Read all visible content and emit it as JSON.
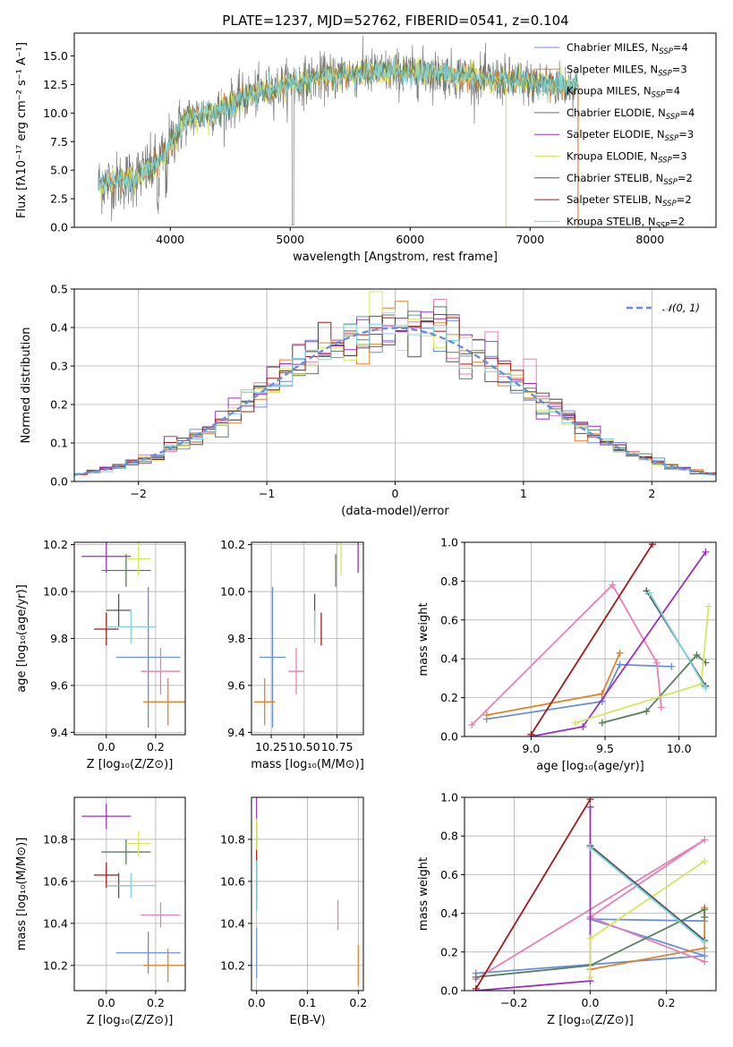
{
  "colors": {
    "chabrier_miles": "#6a8fd8",
    "salpeter_miles": "#e0822a",
    "kroupa_miles": "#e77fb5",
    "chabrier_elodie": "#5a7f5e",
    "salpeter_elodie": "#9b30c0",
    "kroupa_elodie": "#d5e65a",
    "chabrier_stelib": "#555555",
    "salpeter_stelib": "#a31818",
    "kroupa_stelib": "#7fd3de",
    "normal": "#6a8fd8"
  },
  "chart_data": [
    {
      "id": "spectrum",
      "type": "line",
      "title": "PLATE=1237, MJD=52762, FIBERID=0541, z=0.104",
      "xlabel": "wavelength [Angstrom, rest frame]",
      "ylabel": "Flux [fλ10⁻¹⁷ erg cm⁻² s⁻¹ A⁻¹]",
      "xlim": [
        3200,
        8550
      ],
      "ylim": [
        0,
        17
      ],
      "xticks": [
        "4000",
        "5000",
        "6000",
        "7000",
        "8000"
      ],
      "yticks": [
        "0.0",
        "2.5",
        "5.0",
        "7.5",
        "10.0",
        "12.5",
        "15.0"
      ],
      "grid": false,
      "legend_position": "right",
      "legend": [
        "Chabrier MILES, N_SSP=4",
        "Salpeter MILES, N_SSP=3",
        "Kroupa MILES, N_SSP=4",
        "Chabrier ELODIE, N_SSP=4",
        "Salpeter ELODIE, N_SSP=3",
        "Kroupa ELODIE, N_SSP=3",
        "Chabrier STELIB, N_SSP=2",
        "Salpeter STELIB, N_SSP=2",
        "Kroupa STELIB, N_SSP=2"
      ],
      "continuum": {
        "x": [
          3400,
          3550,
          3700,
          3850,
          3950,
          4050,
          4150,
          4300,
          4450,
          4600,
          4800,
          5000,
          5200,
          5400,
          5600,
          5800,
          6000,
          6200,
          6400,
          6600,
          6800,
          7000,
          7200,
          7400
        ],
        "y": [
          3.8,
          4.0,
          4.4,
          5.2,
          6.3,
          8.4,
          9.6,
          10.0,
          10.5,
          11.3,
          12.0,
          12.6,
          13.0,
          13.3,
          13.5,
          13.6,
          13.5,
          13.5,
          13.3,
          13.0,
          12.9,
          12.7,
          12.5,
          12.4
        ]
      }
    },
    {
      "id": "residuals",
      "type": "histogram",
      "xlabel": "(data-model)/error",
      "ylabel": "Normed distribution",
      "xlim": [
        -2.5,
        2.5
      ],
      "ylim": [
        0,
        0.5
      ],
      "xticks": [
        "−2",
        "−1",
        "0",
        "1",
        "2"
      ],
      "yticks": [
        "0.0",
        "0.1",
        "0.2",
        "0.3",
        "0.4",
        "0.5"
      ],
      "grid": true,
      "legend_position": "top-right",
      "legend": [
        "𝒩(0, 1)"
      ],
      "bin_width": 0.1
    },
    {
      "id": "age-vs-Z",
      "type": "errorbar",
      "xlabel": "Z [log₁₀(Z/Z⊙)]",
      "ylabel": "age  [log₁₀(age/yr)]",
      "xlim": [
        -0.13,
        0.32
      ],
      "ylim": [
        9.39,
        10.21
      ],
      "xticks": [
        "0.0",
        "0.2"
      ],
      "yticks": [
        "9.4",
        "9.6",
        "9.8",
        "10.0",
        "10.2"
      ],
      "grid": true
    },
    {
      "id": "age-vs-mass",
      "type": "errorbar",
      "xlabel": "mass [log₁₀(M/M⊙)]",
      "xlim": [
        10.1,
        10.95
      ],
      "ylim": [
        9.39,
        10.21
      ],
      "xticks": [
        "10.25",
        "10.50",
        "10.75"
      ],
      "yticks": [
        "9.4",
        "9.6",
        "9.8",
        "10.0",
        "10.2"
      ],
      "grid": true
    },
    {
      "id": "weight-vs-age",
      "type": "line",
      "xlabel": "age  [log₁₀(age/yr)]",
      "ylabel": "mass weight",
      "xlim": [
        8.55,
        10.25
      ],
      "ylim": [
        0,
        1.0
      ],
      "xticks": [
        "9.0",
        "9.5",
        "10.0"
      ],
      "yticks": [
        "0.0",
        "0.2",
        "0.4",
        "0.6",
        "0.8",
        "1.0"
      ],
      "grid": true
    },
    {
      "id": "mass-vs-Z",
      "type": "errorbar",
      "xlabel": "Z [log₁₀(Z/Z⊙)]",
      "ylabel": "mass [log₁₀(M/M⊙)]",
      "xlim": [
        -0.13,
        0.32
      ],
      "ylim": [
        10.08,
        11.0
      ],
      "xticks": [
        "0.0",
        "0.2"
      ],
      "yticks": [
        "10.2",
        "10.4",
        "10.6",
        "10.8"
      ],
      "grid": true
    },
    {
      "id": "mass-vs-ebv",
      "type": "errorbar",
      "xlabel": "E(B-V)",
      "xlim": [
        -0.01,
        0.21
      ],
      "ylim": [
        10.08,
        11.0
      ],
      "xticks": [
        "0.0",
        "0.1",
        "0.2"
      ],
      "yticks": [
        "10.2",
        "10.4",
        "10.6",
        "10.8"
      ],
      "grid": true
    },
    {
      "id": "weight-vs-Z",
      "type": "line",
      "xlabel": "Z [log₁₀(Z/Z⊙)]",
      "ylabel": "mass weight",
      "xlim": [
        -0.33,
        0.33
      ],
      "ylim": [
        0,
        1.0
      ],
      "xticks": [
        "−0.2",
        "0.0",
        "0.2"
      ],
      "yticks": [
        "0.0",
        "0.2",
        "0.4",
        "0.6",
        "0.8",
        "1.0"
      ],
      "grid": true
    }
  ],
  "fits": [
    {
      "key": "chabrier_miles",
      "Z": 0.17,
      "Zerr": 0.13,
      "age": 9.72,
      "ageerr": 0.3,
      "mass": 10.26,
      "masserr": 0.1,
      "ebv": 0.0,
      "ebverr": 0.0,
      "ssp_age": [
        8.7,
        9.48,
        9.6,
        9.95
      ],
      "ssp_Z": [
        -0.3,
        0.3,
        0.0,
        0.3
      ],
      "ssp_w": [
        0.09,
        0.18,
        0.37,
        0.36
      ]
    },
    {
      "key": "salpeter_miles",
      "Z": 0.25,
      "Zerr": 0.1,
      "age": 9.53,
      "ageerr": 0.1,
      "mass": 10.2,
      "masserr": 0.08,
      "ebv": 0.2,
      "ebverr": 0.0,
      "ssp_age": [
        8.7,
        9.48,
        9.6
      ],
      "ssp_Z": [
        0.0,
        0.3,
        0.3
      ],
      "ssp_w": [
        0.11,
        0.22,
        0.43
      ]
    },
    {
      "key": "kroupa_miles",
      "Z": 0.22,
      "Zerr": 0.08,
      "age": 9.66,
      "ageerr": 0.1,
      "mass": 10.44,
      "masserr": 0.06,
      "ebv": 0.16,
      "ebverr": 0.0,
      "ssp_age": [
        8.6,
        9.55,
        9.85,
        9.88
      ],
      "ssp_Z": [
        -0.3,
        0.3,
        0.0,
        0.3
      ],
      "ssp_w": [
        0.06,
        0.78,
        0.38,
        0.15
      ]
    },
    {
      "key": "chabrier_elodie",
      "Z": 0.08,
      "Zerr": 0.1,
      "age": 10.09,
      "ageerr": 0.0,
      "mass": 10.74,
      "masserr": 0.0,
      "ebv": 0.0,
      "ebverr": 0.0,
      "ssp_age": [
        9.48,
        9.78,
        10.12,
        10.18
      ],
      "ssp_Z": [
        -0.3,
        0.0,
        0.3,
        0.3
      ],
      "ssp_w": [
        0.07,
        0.13,
        0.42,
        0.38
      ]
    },
    {
      "key": "salpeter_elodie",
      "Z": 0.0,
      "Zerr": 0.1,
      "age": 10.15,
      "ageerr": 0.0,
      "mass": 10.91,
      "masserr": 0.0,
      "ebv": 0.0,
      "ebverr": 0.0,
      "ssp_age": [
        9.0,
        9.35,
        10.18
      ],
      "ssp_Z": [
        -0.3,
        0.0,
        0.0
      ],
      "ssp_w": [
        0.0,
        0.05,
        0.95
      ]
    },
    {
      "key": "kroupa_elodie",
      "Z": 0.13,
      "Zerr": 0.05,
      "age": 10.14,
      "ageerr": 0.0,
      "mass": 10.78,
      "masserr": 0.0,
      "ebv": 0.0,
      "ebverr": 0.0,
      "ssp_age": [
        9.3,
        10.15,
        10.2
      ],
      "ssp_Z": [
        0.0,
        0.0,
        0.3
      ],
      "ssp_w": [
        0.07,
        0.27,
        0.67
      ]
    },
    {
      "key": "chabrier_stelib",
      "Z": 0.05,
      "Zerr": 0.05,
      "age": 9.92,
      "ageerr": 0.0,
      "mass": 10.58,
      "masserr": 0.0,
      "ebv": 0.0,
      "ebverr": 0.0,
      "ssp_age": [
        9.78,
        10.18
      ],
      "ssp_Z": [
        0.0,
        0.3
      ],
      "ssp_w": [
        0.75,
        0.26
      ]
    },
    {
      "key": "salpeter_stelib",
      "Z": 0.0,
      "Zerr": 0.05,
      "age": 9.84,
      "ageerr": 0.0,
      "mass": 10.63,
      "masserr": 0.0,
      "ebv": 0.0,
      "ebverr": 0.0,
      "ssp_age": [
        9.0,
        9.82
      ],
      "ssp_Z": [
        -0.3,
        0.0
      ],
      "ssp_w": [
        0.01,
        0.99
      ]
    },
    {
      "key": "kroupa_stelib",
      "Z": 0.1,
      "Zerr": 0.1,
      "age": 9.85,
      "ageerr": 0.0,
      "mass": 10.58,
      "masserr": 0.0,
      "ebv": 0.0,
      "ebverr": 0.0,
      "ssp_age": [
        9.8,
        10.18
      ],
      "ssp_Z": [
        0.0,
        0.3
      ],
      "ssp_w": [
        0.74,
        0.25
      ]
    }
  ]
}
